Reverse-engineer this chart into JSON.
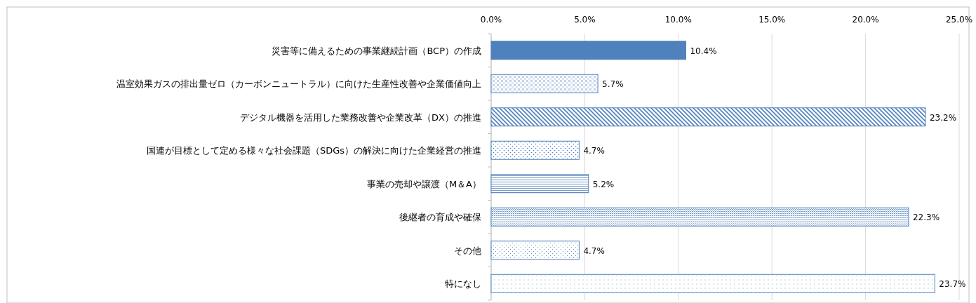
{
  "chart_data": {
    "type": "bar",
    "orientation": "horizontal",
    "categories": [
      "災害等に備えるための事業継続計画（BCP）の作成",
      "温室効果ガスの排出量ゼロ（カーボンニュートラル）に向けた生産性改善や企業価値向上",
      "デジタル機器を活用した業務改善や企業改革（DX）の推進",
      "国連が目標として定める様々な社会課題（SDGs）の解決に向けた企業経営の推進",
      "事業の売却や譲渡（M＆A）",
      "後継者の育成や確保",
      "その他",
      "特になし"
    ],
    "values": [
      10.4,
      5.7,
      23.2,
      4.7,
      5.2,
      22.3,
      4.7,
      23.7
    ],
    "value_labels": [
      "10.4%",
      "5.7%",
      "23.2%",
      "4.7%",
      "5.2%",
      "22.3%",
      "4.7%",
      "23.7%"
    ],
    "color": "#4f81bd",
    "xlim": [
      0,
      25
    ],
    "xticks": [
      {
        "value": 0,
        "label": "0.0%"
      },
      {
        "value": 5,
        "label": "5.0%"
      },
      {
        "value": 10,
        "label": "10.0%"
      },
      {
        "value": 15,
        "label": "15.0%"
      },
      {
        "value": 20,
        "label": "20.0%"
      },
      {
        "value": 25,
        "label": "25.0%"
      }
    ],
    "grid": "x"
  }
}
